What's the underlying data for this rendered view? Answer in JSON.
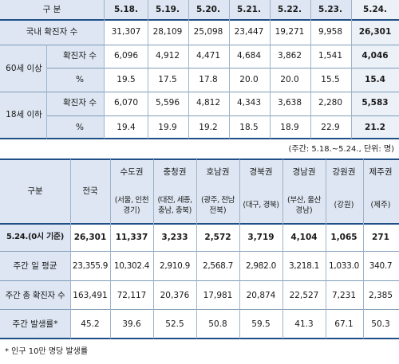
{
  "table1": {
    "header": [
      "구 분",
      "5.18.",
      "5.19.",
      "5.20.",
      "5.21.",
      "5.22.",
      "5.23.",
      "5.24."
    ],
    "rows": [
      {
        "label": "국내 확진자 수",
        "values": [
          "31,307",
          "28,109",
          "25,098",
          "23,447",
          "19,271",
          "9,958",
          "26,301"
        ]
      },
      {
        "group": "60세 이상",
        "label": "확진자 수",
        "values": [
          "6,096",
          "4,912",
          "4,471",
          "4,684",
          "3,862",
          "1,541",
          "4,046"
        ]
      },
      {
        "label": "%",
        "values": [
          "19.5",
          "17.5",
          "17.8",
          "20.0",
          "20.0",
          "15.5",
          "15.4"
        ]
      },
      {
        "group": "18세 이하",
        "label": "확진자 수",
        "values": [
          "6,070",
          "5,596",
          "4,812",
          "4,343",
          "3,638",
          "2,280",
          "5,583"
        ]
      },
      {
        "label": "%",
        "values": [
          "19.4",
          "19.9",
          "19.2",
          "18.5",
          "18.9",
          "22.9",
          "21.2"
        ]
      }
    ],
    "note": "(주간: 5.18.~5.24., 단위: 명)"
  },
  "table2": {
    "header": {
      "col0": "구분",
      "col1": "전국",
      "regions": [
        {
          "name": "수도권",
          "sub1": "(서울, 인천",
          "sub2": "경기)"
        },
        {
          "name": "충청권",
          "sub1": "(대전, 세종,",
          "sub2": "충남, 충북)"
        },
        {
          "name": "호남권",
          "sub1": "(광주, 전남",
          "sub2": "전북)"
        },
        {
          "name": "경북권",
          "sub1": "(대구, 경북)",
          "sub2": ""
        },
        {
          "name": "경남권",
          "sub1": "(부산, 울산",
          "sub2": "경남)"
        },
        {
          "name": "강원권",
          "sub1": "(강원)",
          "sub2": ""
        },
        {
          "name": "제주권",
          "sub1": "(제주)",
          "sub2": ""
        }
      ]
    },
    "rows": [
      {
        "label": "5.24.(0시 기준)",
        "values": [
          "26,301",
          "11,337",
          "3,233",
          "2,572",
          "3,719",
          "4,104",
          "1,065",
          "271"
        ]
      },
      {
        "label": "주간 일 평균",
        "values": [
          "23,355.9",
          "10,302.4",
          "2,910.9",
          "2,568.7",
          "2,982.0",
          "3,218.1",
          "1,033.0",
          "340.7"
        ]
      },
      {
        "label": "주간 총 확진자 수",
        "values": [
          "163,491",
          "72,117",
          "20,376",
          "17,981",
          "20,874",
          "22,527",
          "7,231",
          "2,385"
        ]
      },
      {
        "label": "주간 발생률*",
        "values": [
          "45.2",
          "39.6",
          "52.5",
          "50.8",
          "59.5",
          "41.3",
          "67.1",
          "50.3"
        ]
      }
    ],
    "footnote": "* 인구 10만 명당 발생률"
  },
  "colors": {
    "header_fill": "#dde6f2",
    "border_dark": "#1f4f86",
    "border_light": "#9fb3c8"
  }
}
